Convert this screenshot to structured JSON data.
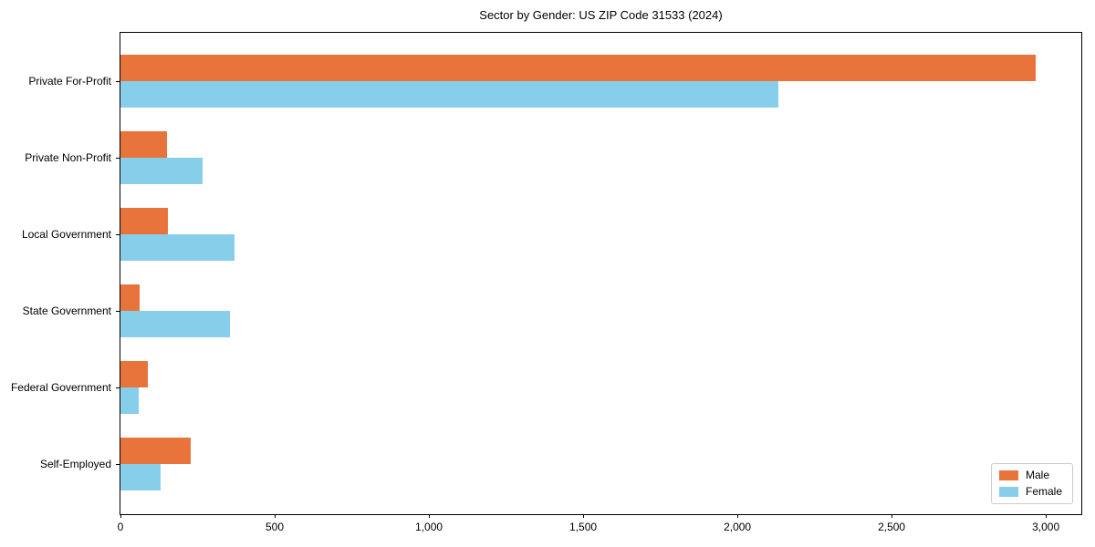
{
  "title": "Sector by Gender: US ZIP Code 31533 (2024)",
  "chart_data": {
    "type": "bar",
    "orientation": "horizontal",
    "title": "Sector by Gender: US ZIP Code 31533 (2024)",
    "categories": [
      "Private For-Profit",
      "Private Non-Profit",
      "Local Government",
      "State Government",
      "Federal Government",
      "Self-Employed"
    ],
    "series": [
      {
        "name": "Male",
        "color": "#e8743b",
        "values": [
          2966,
          150,
          155,
          62,
          89,
          227
        ]
      },
      {
        "name": "Female",
        "color": "#87ceeb",
        "values": [
          2133,
          266,
          370,
          355,
          59,
          130
        ]
      }
    ],
    "xlim": [
      0,
      3115
    ],
    "xticks": [
      0,
      500,
      1000,
      1500,
      2000,
      2500,
      3000
    ],
    "xtick_labels": [
      "0",
      "500",
      "1,000",
      "1,500",
      "2,000",
      "2,500",
      "3,000"
    ],
    "xlabel": "",
    "ylabel": "",
    "grid": false,
    "legend": {
      "position": "lower right"
    }
  }
}
